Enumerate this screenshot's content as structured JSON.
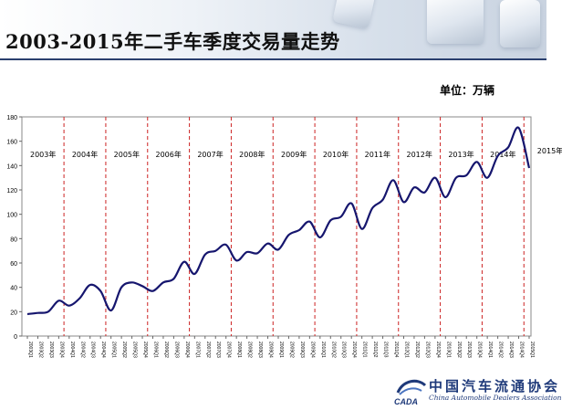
{
  "page": {
    "title": "2003-2015年二手车季度交易量走势",
    "unit": "单位：万辆"
  },
  "logo": {
    "name": "中国汽车流通协会",
    "english": "China Automobile Dealers Association",
    "mark": "CADA"
  },
  "colors": {
    "line": "#16166e",
    "divider": "#cc2222",
    "title_rule": "#2a3f6e",
    "logo": "#1f3a7a"
  },
  "chart_data": {
    "type": "line",
    "title": "",
    "xlabel": "",
    "ylabel": "",
    "ylim": [
      0,
      180
    ],
    "yticks": [
      0,
      20,
      40,
      60,
      80,
      100,
      120,
      140,
      160,
      180
    ],
    "grid": false,
    "year_labels": [
      "2003年",
      "2004年",
      "2005年",
      "2006年",
      "2007年",
      "2008年",
      "2009年",
      "2010年",
      "2011年",
      "2012年",
      "2013年",
      "2014年",
      "2015年"
    ],
    "x": [
      "2003Q1",
      "2003Q2",
      "2003Q3",
      "2003Q4",
      "2004Q1",
      "2004Q2",
      "2004Q3",
      "2004Q4",
      "2005Q1",
      "2005Q2",
      "2005Q3",
      "2005Q4",
      "2006Q1",
      "2006Q2",
      "2006Q3",
      "2006Q4",
      "2007Q1",
      "2007Q2",
      "2007Q3",
      "2007Q4",
      "2008Q1",
      "2008Q2",
      "2008Q3",
      "2008Q4",
      "2009Q1",
      "2009Q2",
      "2009Q3",
      "2009Q4",
      "2010Q1",
      "2010Q2",
      "2010Q3",
      "2010Q4",
      "2011Q1",
      "2011Q2",
      "2011Q3",
      "2011Q4",
      "2012Q1",
      "2012Q2",
      "2012Q3",
      "2012Q4",
      "2013Q1",
      "2013Q2",
      "2013Q3",
      "2013Q4",
      "2014Q1",
      "2014Q2",
      "2014Q3",
      "2014Q4",
      "2015Q1"
    ],
    "series": [
      {
        "name": "",
        "values": [
          18,
          19,
          20,
          29,
          25,
          31,
          42,
          37,
          21,
          40,
          44,
          41,
          37,
          44,
          47,
          61,
          51,
          67,
          70,
          75,
          62,
          69,
          68,
          76,
          71,
          83,
          87,
          94,
          81,
          95,
          98,
          109,
          88,
          105,
          112,
          128,
          110,
          122,
          118,
          130,
          114,
          130,
          132,
          143,
          130,
          148,
          155,
          171,
          138
        ]
      }
    ]
  }
}
